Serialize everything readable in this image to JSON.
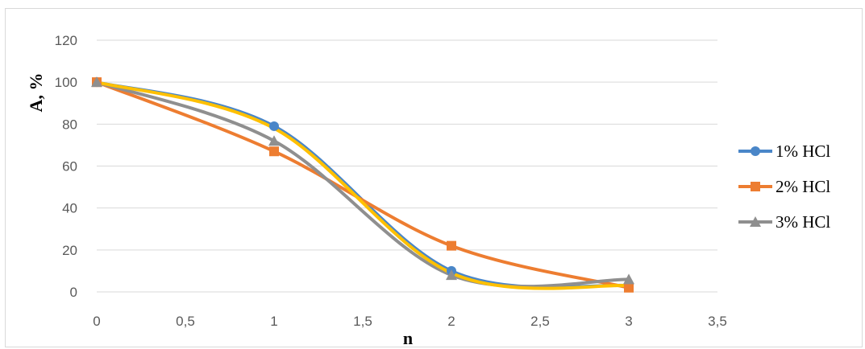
{
  "chart_data": {
    "type": "line",
    "title": "",
    "xlabel": "n",
    "ylabel": "A, %",
    "x": [
      0,
      1,
      2,
      3
    ],
    "xlim": [
      0,
      3.5
    ],
    "ylim": [
      0,
      120
    ],
    "x_ticks": [
      "0",
      "0,5",
      "1",
      "1,5",
      "2",
      "2,5",
      "3",
      "3,5"
    ],
    "x_tick_values": [
      0,
      0.5,
      1,
      1.5,
      2,
      2.5,
      3,
      3.5
    ],
    "y_ticks": [
      "0",
      "20",
      "40",
      "60",
      "80",
      "100",
      "120"
    ],
    "y_tick_values": [
      0,
      20,
      40,
      60,
      80,
      100,
      120
    ],
    "grid": true,
    "smooth": true,
    "legend_position": "right",
    "series": [
      {
        "name": "1% HCl",
        "values": [
          100,
          79,
          10,
          3
        ],
        "color": "#4a86c8",
        "marker": "circle"
      },
      {
        "name": "2% HCl",
        "values": [
          100,
          67,
          22,
          2
        ],
        "color": "#ed7d31",
        "marker": "square"
      },
      {
        "name": "3% HCl",
        "values": [
          100,
          72,
          8,
          6
        ],
        "color": "#8f8f8f",
        "marker": "triangle"
      },
      {
        "name": "",
        "values": [
          100,
          78,
          9,
          3
        ],
        "color": "#ffc000",
        "marker": "none"
      }
    ]
  }
}
